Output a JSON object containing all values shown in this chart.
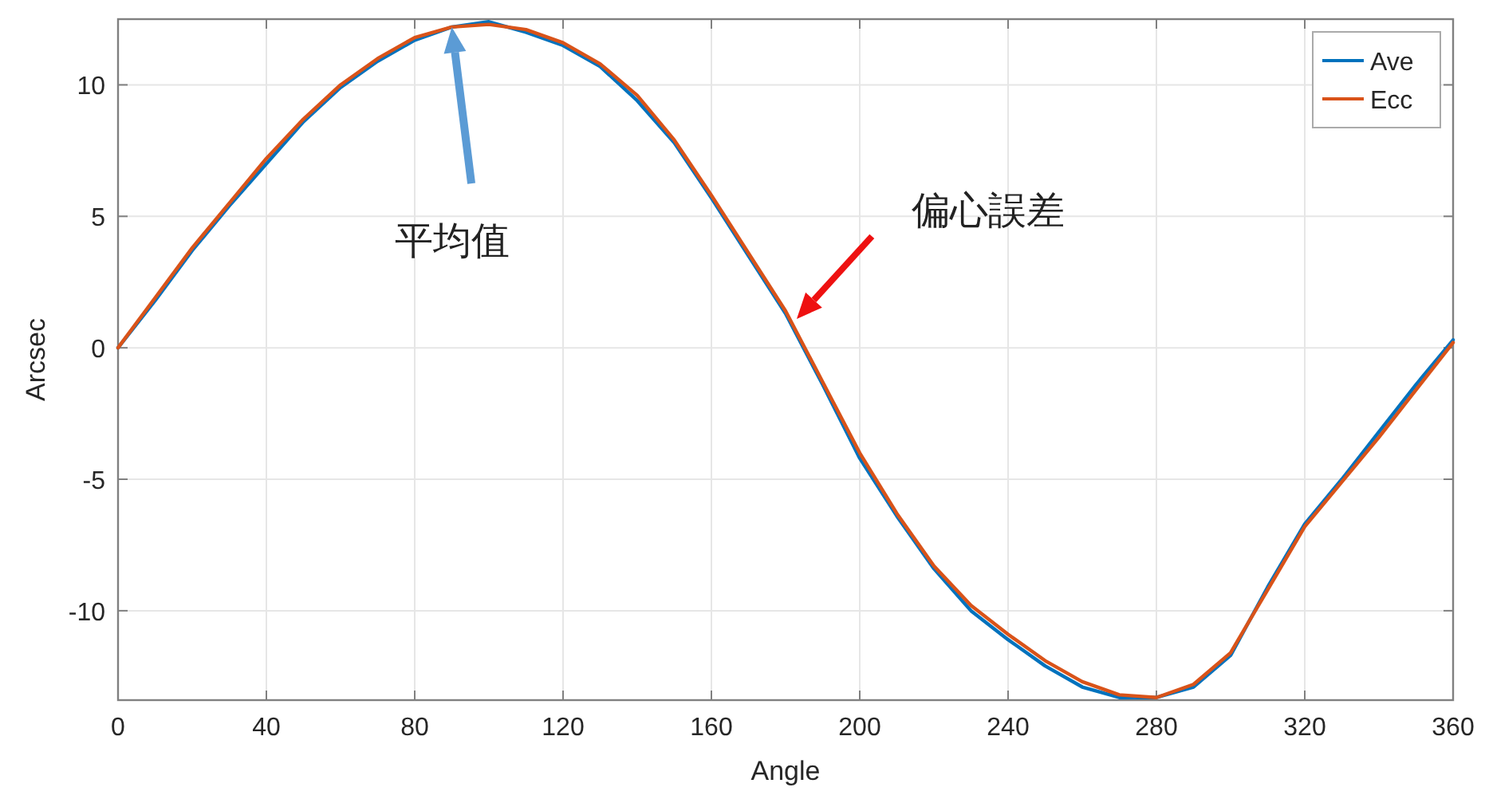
{
  "chart_data": {
    "type": "line",
    "xlabel": "Angle",
    "ylabel": "Arcsec",
    "x": [
      0,
      10,
      20,
      30,
      40,
      50,
      60,
      70,
      80,
      90,
      100,
      110,
      120,
      130,
      140,
      150,
      160,
      170,
      180,
      190,
      200,
      210,
      220,
      230,
      240,
      250,
      260,
      270,
      280,
      290,
      300,
      310,
      320,
      330,
      340,
      350,
      360
    ],
    "series": [
      {
        "name": "Ave",
        "color": "#0072bd",
        "values": [
          0,
          1.8,
          3.7,
          5.4,
          7.0,
          8.6,
          9.9,
          10.9,
          11.7,
          12.2,
          12.4,
          12.0,
          11.5,
          10.7,
          9.4,
          7.8,
          5.7,
          3.5,
          1.3,
          -1.4,
          -4.2,
          -6.4,
          -8.4,
          -10.0,
          -11.1,
          -12.1,
          -12.9,
          -13.3,
          -13.3,
          -12.9,
          -11.7,
          -9.1,
          -6.7,
          -5.0,
          -3.2,
          -1.4,
          0.3
        ]
      },
      {
        "name": "Ecc",
        "color": "#d95319",
        "values": [
          0,
          1.9,
          3.8,
          5.5,
          7.2,
          8.7,
          10.0,
          11.0,
          11.8,
          12.2,
          12.3,
          12.1,
          11.6,
          10.8,
          9.6,
          7.9,
          5.8,
          3.6,
          1.4,
          -1.3,
          -4.0,
          -6.3,
          -8.3,
          -9.8,
          -10.9,
          -11.9,
          -12.7,
          -13.2,
          -13.3,
          -12.8,
          -11.6,
          -9.2,
          -6.8,
          -5.1,
          -3.4,
          -1.6,
          0.2
        ]
      }
    ],
    "annotations": [
      "平均值",
      "偏心誤差"
    ],
    "xlim": [
      0,
      360
    ],
    "xticks": [
      0,
      40,
      80,
      120,
      160,
      200,
      240,
      280,
      320,
      360
    ],
    "ylim": [
      -13.4,
      12.5
    ],
    "yticks": [
      -10,
      -5,
      0,
      5,
      10
    ],
    "grid": true,
    "legend": "top right",
    "line_style": "solid",
    "marker": "none"
  }
}
